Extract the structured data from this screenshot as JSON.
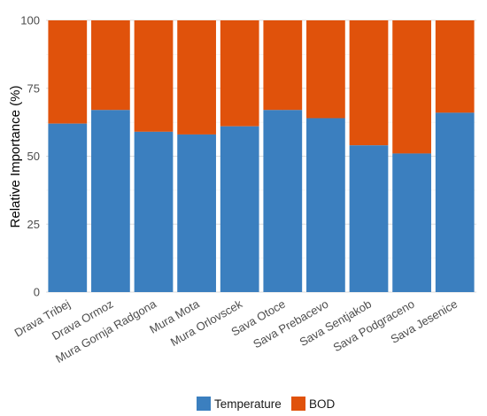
{
  "chart_data": {
    "type": "bar",
    "stacked": true,
    "title": "",
    "xlabel": "",
    "ylabel": "Relative Importance (%)",
    "ylim": [
      0,
      100
    ],
    "yticks": [
      0,
      25,
      50,
      75,
      100
    ],
    "grid": true,
    "legend_position": "bottom",
    "categories": [
      "Drava Tribej",
      "Drava Ormoz",
      "Mura Gornja Radgona",
      "Mura Mota",
      "Mura Orlovscek",
      "Sava Otoce",
      "Sava Prebacevo",
      "Sava Sentjakob",
      "Sava Podgraceno",
      "Sava Jesenice"
    ],
    "series": [
      {
        "name": "Temperature",
        "color": "#3b7fbf",
        "values": [
          62,
          67,
          59,
          58,
          61,
          67,
          64,
          54,
          51,
          66
        ]
      },
      {
        "name": "BOD",
        "color": "#e0520b",
        "values": [
          38,
          33,
          41,
          42,
          39,
          33,
          36,
          46,
          49,
          34
        ]
      }
    ]
  }
}
